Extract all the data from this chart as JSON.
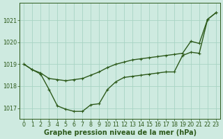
{
  "line1_x": [
    0,
    1,
    2,
    3,
    4,
    5,
    6,
    7,
    8,
    9,
    10,
    11,
    12,
    13,
    14,
    15,
    16,
    17,
    18,
    19,
    20,
    21,
    22,
    23
  ],
  "line1_y": [
    1019.0,
    1018.75,
    1018.6,
    1018.35,
    1018.3,
    1018.25,
    1018.3,
    1018.35,
    1018.5,
    1018.65,
    1018.85,
    1019.0,
    1019.1,
    1019.2,
    1019.25,
    1019.3,
    1019.35,
    1019.4,
    1019.45,
    1019.5,
    1020.05,
    1019.95,
    1021.05,
    1021.35
  ],
  "line2_x": [
    0,
    1,
    2,
    3,
    4,
    5,
    6,
    7,
    8,
    9,
    10,
    11,
    12,
    13,
    14,
    15,
    16,
    17,
    18,
    19,
    20,
    21,
    22,
    23
  ],
  "line2_y": [
    1019.0,
    1018.75,
    1018.55,
    1017.85,
    1017.1,
    1016.95,
    1016.85,
    1016.85,
    1017.15,
    1017.2,
    1017.85,
    1018.2,
    1018.4,
    1018.45,
    1018.5,
    1018.55,
    1018.6,
    1018.65,
    1018.65,
    1019.4,
    1019.55,
    1019.5,
    1021.05,
    1021.35
  ],
  "line_color": "#2d5a1b",
  "bg_color": "#ceeae0",
  "grid_color": "#a8d4c4",
  "xlabel": "Graphe pression niveau de la mer (hPa)",
  "ylim": [
    1016.5,
    1021.8
  ],
  "yticks": [
    1017,
    1018,
    1019,
    1020,
    1021
  ],
  "xticks": [
    0,
    1,
    2,
    3,
    4,
    5,
    6,
    7,
    8,
    9,
    10,
    11,
    12,
    13,
    14,
    15,
    16,
    17,
    18,
    19,
    20,
    21,
    22,
    23
  ],
  "tick_fontsize": 5.8,
  "xlabel_fontsize": 7.0,
  "marker_size": 2.5,
  "line_width": 1.0
}
